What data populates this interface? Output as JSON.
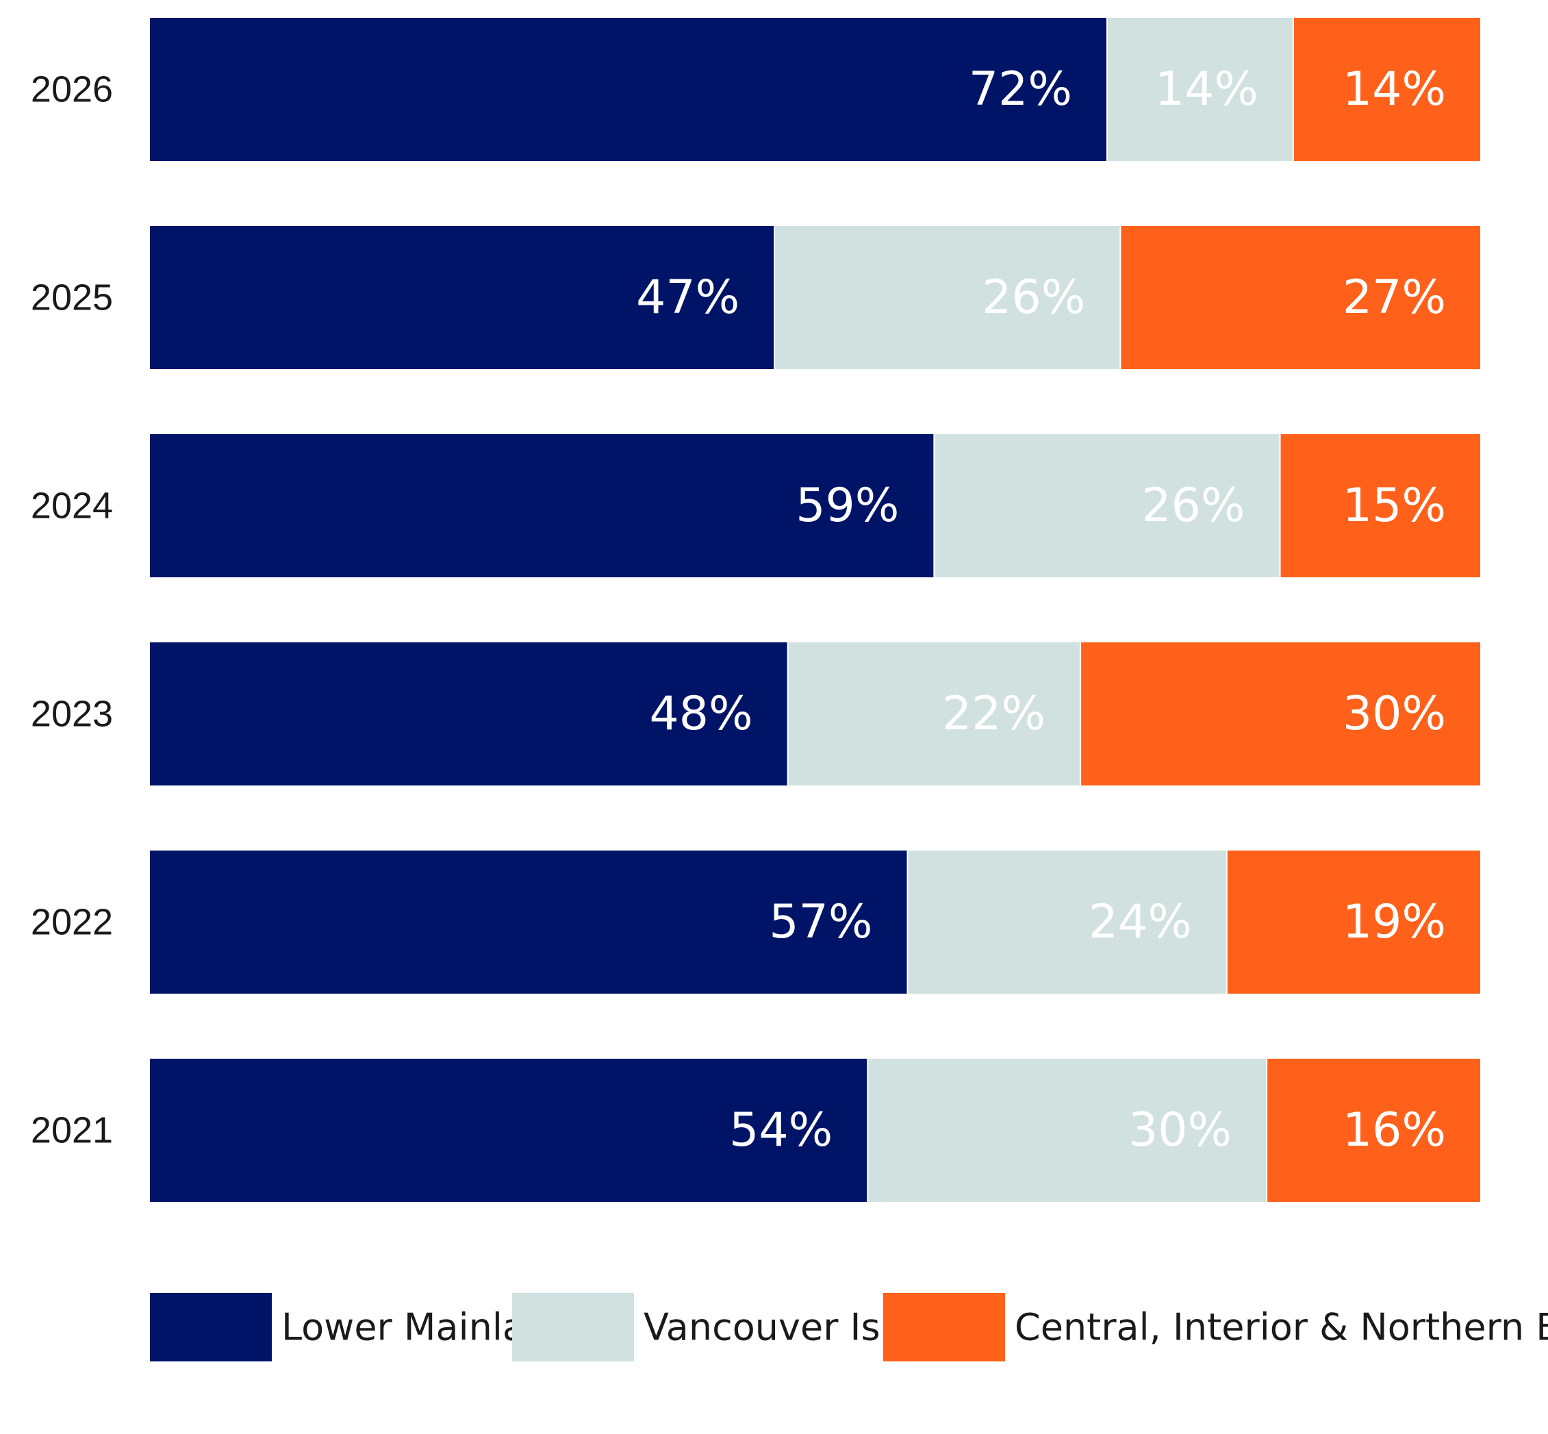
{
  "chart_data": {
    "type": "bar",
    "orientation": "horizontal",
    "stacked": true,
    "normalized_percent": true,
    "categories": [
      "2026",
      "2025",
      "2024",
      "2023",
      "2022",
      "2021"
    ],
    "series": [
      {
        "name": "Lower Mainland",
        "color": "#001467",
        "values": [
          72,
          47,
          59,
          48,
          57,
          54
        ],
        "labels": [
          "72%",
          "47%",
          "59%",
          "48%",
          "57%",
          "54%"
        ]
      },
      {
        "name": "Vancouver Island",
        "color": "#D1E1DF",
        "values": [
          14,
          26,
          26,
          22,
          24,
          30
        ],
        "labels": [
          "14%",
          "26%",
          "26%",
          "22%",
          "24%",
          "30%"
        ]
      },
      {
        "name": "Central, Interior & Northern BC",
        "color": "#FF611A",
        "values": [
          14,
          27,
          15,
          30,
          19,
          16
        ],
        "labels": [
          "14%",
          "27%",
          "15%",
          "30%",
          "19%",
          "16%"
        ]
      }
    ],
    "xlim": [
      0,
      100
    ],
    "grid": false,
    "legend_position": "bottom"
  }
}
